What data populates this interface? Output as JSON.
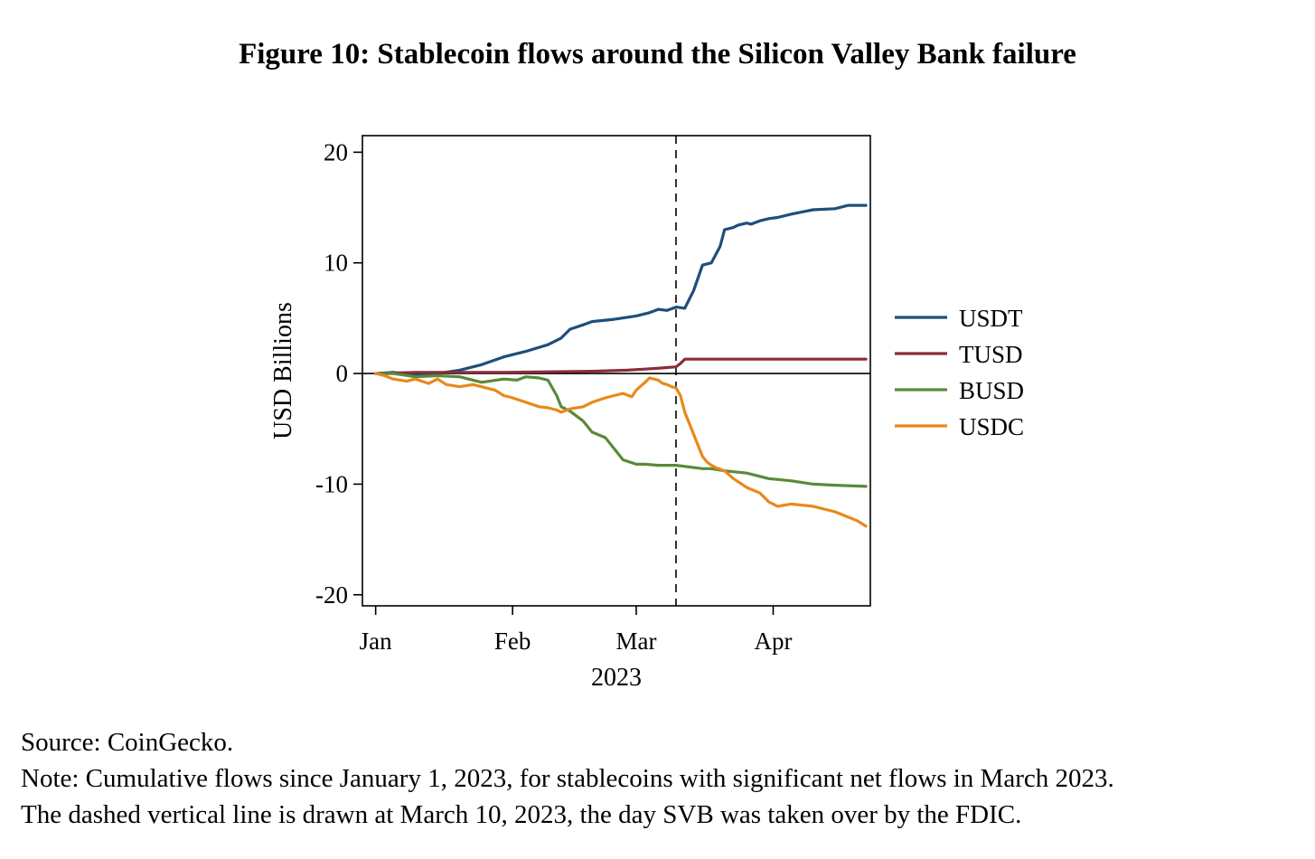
{
  "figure": {
    "title": "Figure 10: Stablecoin flows around the Silicon Valley Bank failure",
    "source": "Source: CoinGecko.",
    "note_line1": "Note: Cumulative flows since January 1, 2023, for stablecoins with significant net flows in March 2023.",
    "note_line2": "The dashed vertical line is drawn at March 10, 2023, the day SVB was taken over by the FDIC."
  },
  "chart_data": {
    "type": "line",
    "title": "",
    "xlabel": "2023",
    "ylabel": "USD Billions",
    "x_unit": "day of year 2023 (Jan 1 = 1)",
    "xlim": [
      -2,
      113
    ],
    "ylim": [
      -21,
      21.5
    ],
    "yticks": [
      20,
      10,
      0,
      -10,
      -20
    ],
    "ytick_labels": [
      "20",
      "10",
      "0",
      "-10",
      "-20"
    ],
    "xticks": [
      1,
      32,
      60,
      91
    ],
    "xtick_labels": [
      "Jan",
      "Feb",
      "Mar",
      "Apr"
    ],
    "reference_lines": {
      "horizontal_zero": 0,
      "vertical_dashed_day": 69
    },
    "legend_position": "right",
    "series": [
      {
        "name": "USDT",
        "color": "#1f4e79",
        "x": [
          1,
          5,
          10,
          15,
          20,
          25,
          30,
          35,
          40,
          43,
          45,
          48,
          50,
          55,
          60,
          63,
          65,
          67,
          69,
          71,
          73,
          75,
          77,
          79,
          80,
          82,
          83,
          85,
          86,
          88,
          90,
          92,
          95,
          100,
          105,
          108,
          112
        ],
        "y": [
          0,
          0.1,
          -0.2,
          0,
          0.3,
          0.8,
          1.5,
          2.0,
          2.6,
          3.2,
          4.0,
          4.4,
          4.7,
          4.9,
          5.2,
          5.5,
          5.8,
          5.7,
          6.0,
          5.9,
          7.5,
          9.8,
          10.0,
          11.5,
          13.0,
          13.2,
          13.4,
          13.6,
          13.5,
          13.8,
          14.0,
          14.1,
          14.4,
          14.8,
          14.9,
          15.2,
          15.2
        ]
      },
      {
        "name": "TUSD",
        "color": "#8b2d3a",
        "x": [
          1,
          10,
          20,
          30,
          40,
          50,
          58,
          62,
          66,
          69,
          70,
          71,
          80,
          90,
          100,
          112
        ],
        "y": [
          0,
          0.1,
          0.1,
          0.1,
          0.15,
          0.2,
          0.3,
          0.4,
          0.5,
          0.6,
          0.9,
          1.3,
          1.3,
          1.3,
          1.3,
          1.3
        ]
      },
      {
        "name": "BUSD",
        "color": "#5a8a3a",
        "x": [
          1,
          5,
          10,
          15,
          20,
          25,
          30,
          33,
          35,
          38,
          40,
          42,
          43,
          45,
          48,
          50,
          53,
          55,
          57,
          60,
          62,
          65,
          69,
          71,
          73,
          75,
          77,
          80,
          85,
          90,
          95,
          100,
          105,
          112
        ],
        "y": [
          0,
          0,
          -0.3,
          -0.2,
          -0.3,
          -0.8,
          -0.5,
          -0.6,
          -0.3,
          -0.4,
          -0.6,
          -2.0,
          -3.0,
          -3.4,
          -4.3,
          -5.3,
          -5.8,
          -6.8,
          -7.8,
          -8.2,
          -8.2,
          -8.3,
          -8.3,
          -8.4,
          -8.5,
          -8.6,
          -8.6,
          -8.8,
          -9.0,
          -9.5,
          -9.7,
          -10.0,
          -10.1,
          -10.2
        ]
      },
      {
        "name": "USDC",
        "color": "#e8891b",
        "x": [
          1,
          3,
          5,
          8,
          10,
          13,
          15,
          17,
          20,
          23,
          25,
          28,
          30,
          32,
          35,
          38,
          40,
          42,
          43,
          45,
          48,
          50,
          53,
          55,
          57,
          59,
          60,
          62,
          63,
          65,
          66,
          67,
          68,
          69,
          70,
          71,
          72,
          73,
          74,
          75,
          76,
          77,
          78,
          80,
          82,
          85,
          88,
          90,
          92,
          95,
          100,
          105,
          110,
          112
        ],
        "y": [
          0,
          -0.2,
          -0.5,
          -0.7,
          -0.5,
          -0.9,
          -0.5,
          -1.0,
          -1.2,
          -1.0,
          -1.2,
          -1.5,
          -2.0,
          -2.2,
          -2.6,
          -3.0,
          -3.1,
          -3.3,
          -3.5,
          -3.2,
          -3.0,
          -2.6,
          -2.2,
          -2.0,
          -1.8,
          -2.1,
          -1.5,
          -0.8,
          -0.4,
          -0.6,
          -0.9,
          -1.0,
          -1.2,
          -1.3,
          -2.0,
          -3.5,
          -4.5,
          -5.5,
          -6.5,
          -7.5,
          -8.0,
          -8.3,
          -8.5,
          -8.8,
          -9.5,
          -10.3,
          -10.8,
          -11.6,
          -12.0,
          -11.8,
          -12.0,
          -12.5,
          -13.3,
          -13.8
        ]
      }
    ]
  }
}
